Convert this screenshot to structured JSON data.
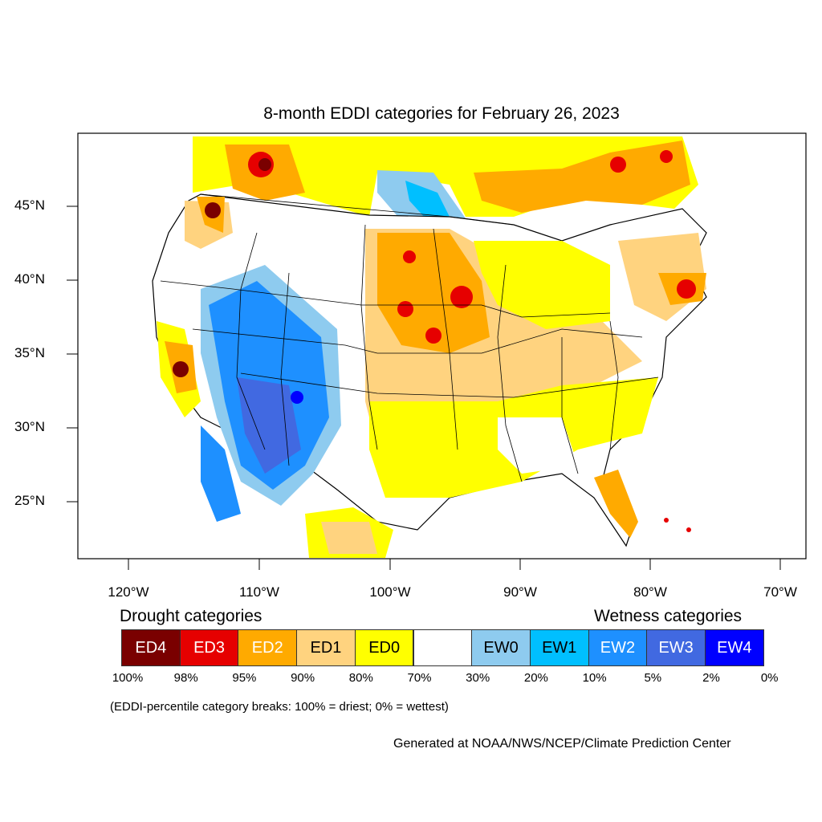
{
  "title": "8-month EDDI categories for February 26, 2023",
  "latitude_labels": [
    "45°N",
    "40°N",
    "35°N",
    "30°N",
    "25°N"
  ],
  "longitude_labels": [
    "120°W",
    "110°W",
    "100°W",
    "90°W",
    "80°W",
    "70°W"
  ],
  "legend": {
    "drought_heading": "Drought categories",
    "wetness_heading": "Wetness categories",
    "categories": [
      {
        "label": "ED4",
        "color": "#7a0000",
        "text_color": "#ffffff"
      },
      {
        "label": "ED3",
        "color": "#e60000",
        "text_color": "#ffffff"
      },
      {
        "label": "ED2",
        "color": "#ffaa00",
        "text_color": "#ffffff"
      },
      {
        "label": "ED1",
        "color": "#ffd37f",
        "text_color": "#000000"
      },
      {
        "label": "ED0",
        "color": "#ffff00",
        "text_color": "#000000"
      },
      {
        "label": "",
        "color": "#ffffff",
        "text_color": "#000000"
      },
      {
        "label": "EW0",
        "color": "#8ecbef",
        "text_color": "#000000"
      },
      {
        "label": "EW1",
        "color": "#00bfff",
        "text_color": "#000000"
      },
      {
        "label": "EW2",
        "color": "#1e90ff",
        "text_color": "#ffffff"
      },
      {
        "label": "EW3",
        "color": "#4169e1",
        "text_color": "#ffffff"
      },
      {
        "label": "EW4",
        "color": "#0000ff",
        "text_color": "#ffffff"
      }
    ],
    "breaks": [
      "100%",
      "98%",
      "95%",
      "90%",
      "80%",
      "70%",
      "30%",
      "20%",
      "10%",
      "5%",
      "2%",
      "0%"
    ]
  },
  "note": "(EDDI-percentile category breaks: 100% = driest; 0% = wettest)",
  "credit": "Generated at NOAA/NWS/NCEP/Climate Prediction Center"
}
